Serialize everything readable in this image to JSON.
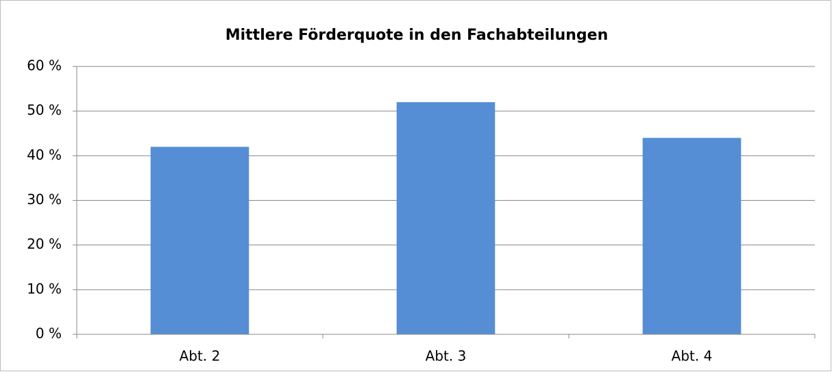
{
  "chart_data": {
    "type": "bar",
    "title": "Mittlere Förderquote in den Fachabteilungen",
    "categories": [
      "Abt. 2",
      "Abt. 3",
      "Abt. 4"
    ],
    "values": [
      42,
      52,
      44
    ],
    "color": "#558ed5",
    "ylim": [
      0,
      60
    ],
    "yticks": [
      {
        "value": 0,
        "label": "0 %"
      },
      {
        "value": 10,
        "label": "10 %"
      },
      {
        "value": 20,
        "label": "20 %"
      },
      {
        "value": 30,
        "label": "30 %"
      },
      {
        "value": 40,
        "label": "40 %"
      },
      {
        "value": 50,
        "label": "50 %"
      },
      {
        "value": 60,
        "label": "60 %"
      }
    ],
    "grid": true
  }
}
